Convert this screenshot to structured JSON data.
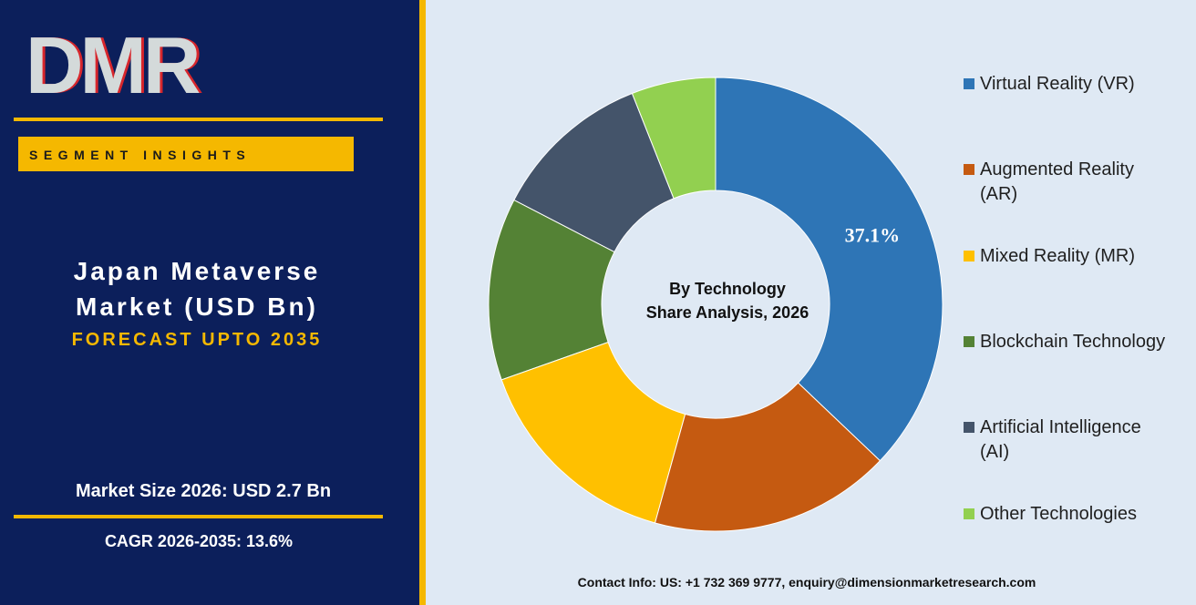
{
  "logo": "DMR",
  "segment_label": "SEGMENT INSIGHTS",
  "title": [
    "Japan Metaverse",
    "Market (USD Bn)"
  ],
  "forecast": "FORECAST UPTO 2035",
  "market_size": "Market Size 2026: USD 2.7 Bn",
  "cagr": "CAGR 2026-2035: 13.6%",
  "contact": "Contact Info: US: +1 732 369 9777, enquiry@dimensionmarketresearch.com",
  "chart_data": {
    "type": "pie",
    "center_text": [
      "By Technology",
      "Share Analysis, 2026"
    ],
    "categories": [
      "Virtual Reality (VR)",
      "Augmented Reality (AR)",
      "Mixed Reality (MR)",
      "Blockchain Technology",
      "Artificial Intelligence (AI)",
      "Other Technologies"
    ],
    "values": [
      37.1,
      17.2,
      15.3,
      13.0,
      11.4,
      6.0
    ],
    "value_labels": [
      "37.1%",
      null,
      null,
      null,
      null,
      null
    ],
    "colors": [
      "#2e75b6",
      "#c55a11",
      "#ffc000",
      "#548235",
      "#44546a",
      "#92d050"
    ],
    "legend": "right"
  }
}
